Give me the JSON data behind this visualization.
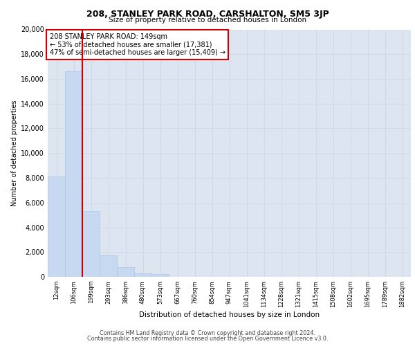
{
  "title": "208, STANLEY PARK ROAD, CARSHALTON, SM5 3JP",
  "subtitle": "Size of property relative to detached houses in London",
  "xlabel": "Distribution of detached houses by size in London",
  "ylabel": "Number of detached properties",
  "categories": [
    "12sqm",
    "106sqm",
    "199sqm",
    "293sqm",
    "386sqm",
    "480sqm",
    "573sqm",
    "667sqm",
    "760sqm",
    "854sqm",
    "947sqm",
    "1041sqm",
    "1134sqm",
    "1228sqm",
    "1321sqm",
    "1415sqm",
    "1508sqm",
    "1602sqm",
    "1695sqm",
    "1789sqm",
    "1882sqm"
  ],
  "values": [
    8100,
    16600,
    5300,
    1750,
    800,
    300,
    200,
    0,
    0,
    0,
    0,
    0,
    0,
    0,
    0,
    0,
    0,
    0,
    0,
    0,
    0
  ],
  "bar_color": "#c6d9f0",
  "bar_edge_color": "#aec6e8",
  "vline_color": "#cc0000",
  "annotation_text": "208 STANLEY PARK ROAD: 149sqm\n← 53% of detached houses are smaller (17,381)\n47% of semi-detached houses are larger (15,409) →",
  "annotation_box_color": "white",
  "annotation_box_edgecolor": "#cc0000",
  "ylim": [
    0,
    20000
  ],
  "yticks": [
    0,
    2000,
    4000,
    6000,
    8000,
    10000,
    12000,
    14000,
    16000,
    18000,
    20000
  ],
  "grid_color": "#d0d8e8",
  "background_color": "#dde5f0",
  "footer_line1": "Contains HM Land Registry data © Crown copyright and database right 2024.",
  "footer_line2": "Contains public sector information licensed under the Open Government Licence v3.0."
}
